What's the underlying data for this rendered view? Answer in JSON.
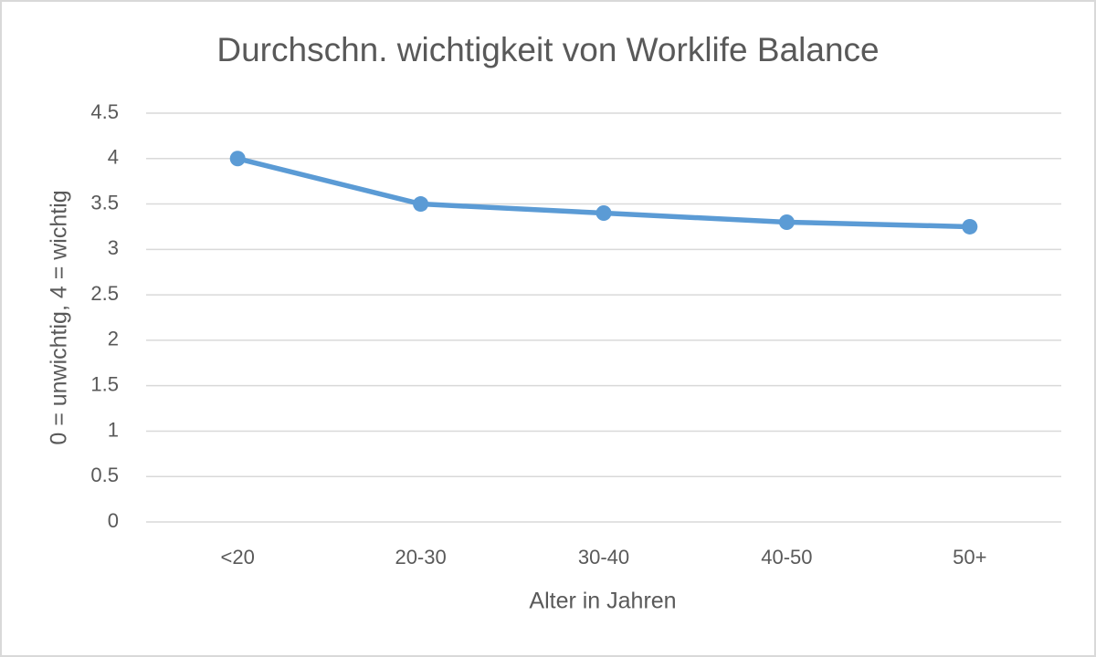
{
  "chart_data": {
    "type": "line",
    "title": "Durchschn. wichtigkeit von Worklife Balance",
    "x_label": "Alter in Jahren",
    "y_label": "0 = unwichtig, 4 = wichtig",
    "categories": [
      "<20",
      "20-30",
      "30-40",
      "40-50",
      "50+"
    ],
    "values": [
      4,
      3.5,
      3.4,
      3.3,
      3.25
    ],
    "color": "#5b9bd5",
    "ylim": [
      0,
      4.5
    ],
    "yticks": [
      0,
      0.5,
      1,
      1.5,
      2,
      2.5,
      3,
      3.5,
      4,
      4.5
    ],
    "grid": true
  }
}
